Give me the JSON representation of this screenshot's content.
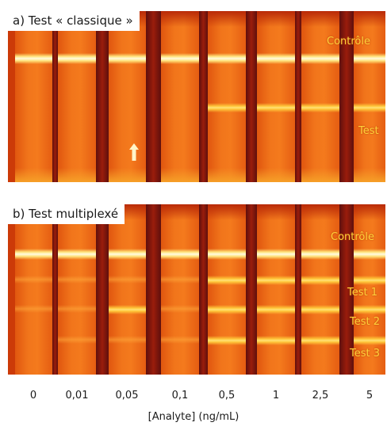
{
  "panel_a": {
    "title": "a) Test « classique »",
    "control_label": "Contrôle",
    "test_label": "Test"
  },
  "panel_b": {
    "title": "b) Test multiplexé",
    "control_label": "Contrôle",
    "test_labels": [
      "Test 1",
      "Test 2",
      "Test 3"
    ]
  },
  "concentrations": [
    "0",
    "0,01",
    "0,05",
    "0,1",
    "0,5",
    "1",
    "2,5",
    "5"
  ],
  "axis_title": "[Analyte] (ng/mL)",
  "colors": {
    "strip_background": "#f1751b",
    "control_band": "#fffbe0",
    "test_band": "#ffc93c",
    "label_color": "#ffd23a",
    "arrow_color": "#fff4c8"
  },
  "icons": [
    "up-arrow-icon"
  ]
}
